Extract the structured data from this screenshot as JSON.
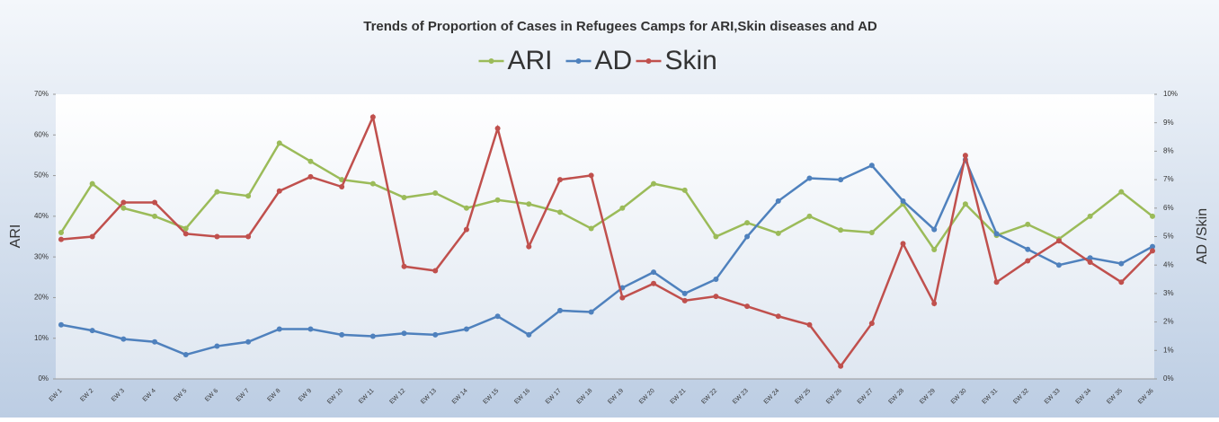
{
  "chart_data": {
    "type": "line",
    "title": "Trends of Proportion of Cases in Refugees Camps for ARI,Skin diseases and AD",
    "ylabel": "ARI",
    "y2label": "AD /Skin",
    "legend": "top",
    "grid": false,
    "categories": [
      "EW 1",
      "EW 2",
      "EW 3",
      "EW 4",
      "EW 5",
      "EW 6",
      "EW 7",
      "EW 8",
      "EW 9",
      "EW 10",
      "EW 11",
      "EW 12",
      "EW 13",
      "EW 14",
      "EW 15",
      "EW 16",
      "EW 17",
      "EW 18",
      "EW 19",
      "EW 20",
      "EW 21",
      "EW 22",
      "EW 23",
      "EW 24",
      "EW 25",
      "EW 26",
      "EW 27",
      "EW 28",
      "EW 29",
      "EW 30",
      "EW 31",
      "EW 32",
      "EW 33",
      "EW 34",
      "EW 35",
      "EW 36"
    ],
    "ylim": [
      0,
      70
    ],
    "yticks": [
      {
        "value": 0,
        "label": "0%"
      },
      {
        "value": 10,
        "label": "10%"
      },
      {
        "value": 20,
        "label": "20%"
      },
      {
        "value": 30,
        "label": "30%"
      },
      {
        "value": 40,
        "label": "40%"
      },
      {
        "value": 50,
        "label": "50%"
      },
      {
        "value": 60,
        "label": "60%"
      },
      {
        "value": 70,
        "label": "70%"
      }
    ],
    "y2lim": [
      0,
      10
    ],
    "y2ticks": [
      {
        "value": 0,
        "label": "0%"
      },
      {
        "value": 1,
        "label": "1%"
      },
      {
        "value": 2,
        "label": "2%"
      },
      {
        "value": 3,
        "label": "3%"
      },
      {
        "value": 4,
        "label": "4%"
      },
      {
        "value": 5,
        "label": "5%"
      },
      {
        "value": 6,
        "label": "6%"
      },
      {
        "value": 7,
        "label": "7%"
      },
      {
        "value": 8,
        "label": "8%"
      },
      {
        "value": 9,
        "label": "9%"
      },
      {
        "value": 10,
        "label": "10%"
      }
    ],
    "series": [
      {
        "name": "ARI",
        "color": "#9bbb59",
        "values": [
          36,
          48,
          42,
          40,
          37,
          46,
          45,
          58,
          53.5,
          49,
          48,
          44.6,
          45.7,
          42,
          44,
          43,
          41,
          37,
          42,
          48,
          46.4,
          35,
          38.4,
          35.8,
          40,
          36.6,
          36,
          43,
          31.8,
          43,
          35.3,
          38,
          34.4,
          40,
          46,
          40
        ]
      },
      {
        "name": "AD",
        "color": "#4f81bd",
        "axis": "y2",
        "values": [
          1.9,
          1.7,
          1.4,
          1.3,
          0.85,
          1.15,
          1.3,
          1.75,
          1.75,
          1.55,
          1.5,
          1.6,
          1.55,
          1.75,
          2.2,
          1.55,
          2.4,
          2.35,
          3.2,
          3.75,
          3.0,
          3.5,
          5.0,
          6.25,
          7.05,
          7.0,
          7.5,
          6.25,
          5.25,
          7.7,
          5.1,
          4.55,
          4.0,
          4.25,
          4.05,
          4.65
        ]
      },
      {
        "name": "Skin",
        "color": "#c0504d",
        "axis": "y2",
        "values": [
          4.9,
          5.0,
          6.2,
          6.2,
          5.1,
          5.0,
          5.0,
          6.6,
          7.1,
          6.75,
          9.2,
          3.95,
          3.8,
          5.25,
          8.8,
          4.65,
          7.0,
          7.15,
          2.85,
          3.35,
          2.75,
          2.9,
          2.55,
          2.2,
          1.9,
          0.45,
          1.95,
          4.75,
          2.65,
          7.85,
          3.4,
          4.15,
          4.85,
          4.1,
          3.4,
          4.5
        ]
      }
    ]
  }
}
